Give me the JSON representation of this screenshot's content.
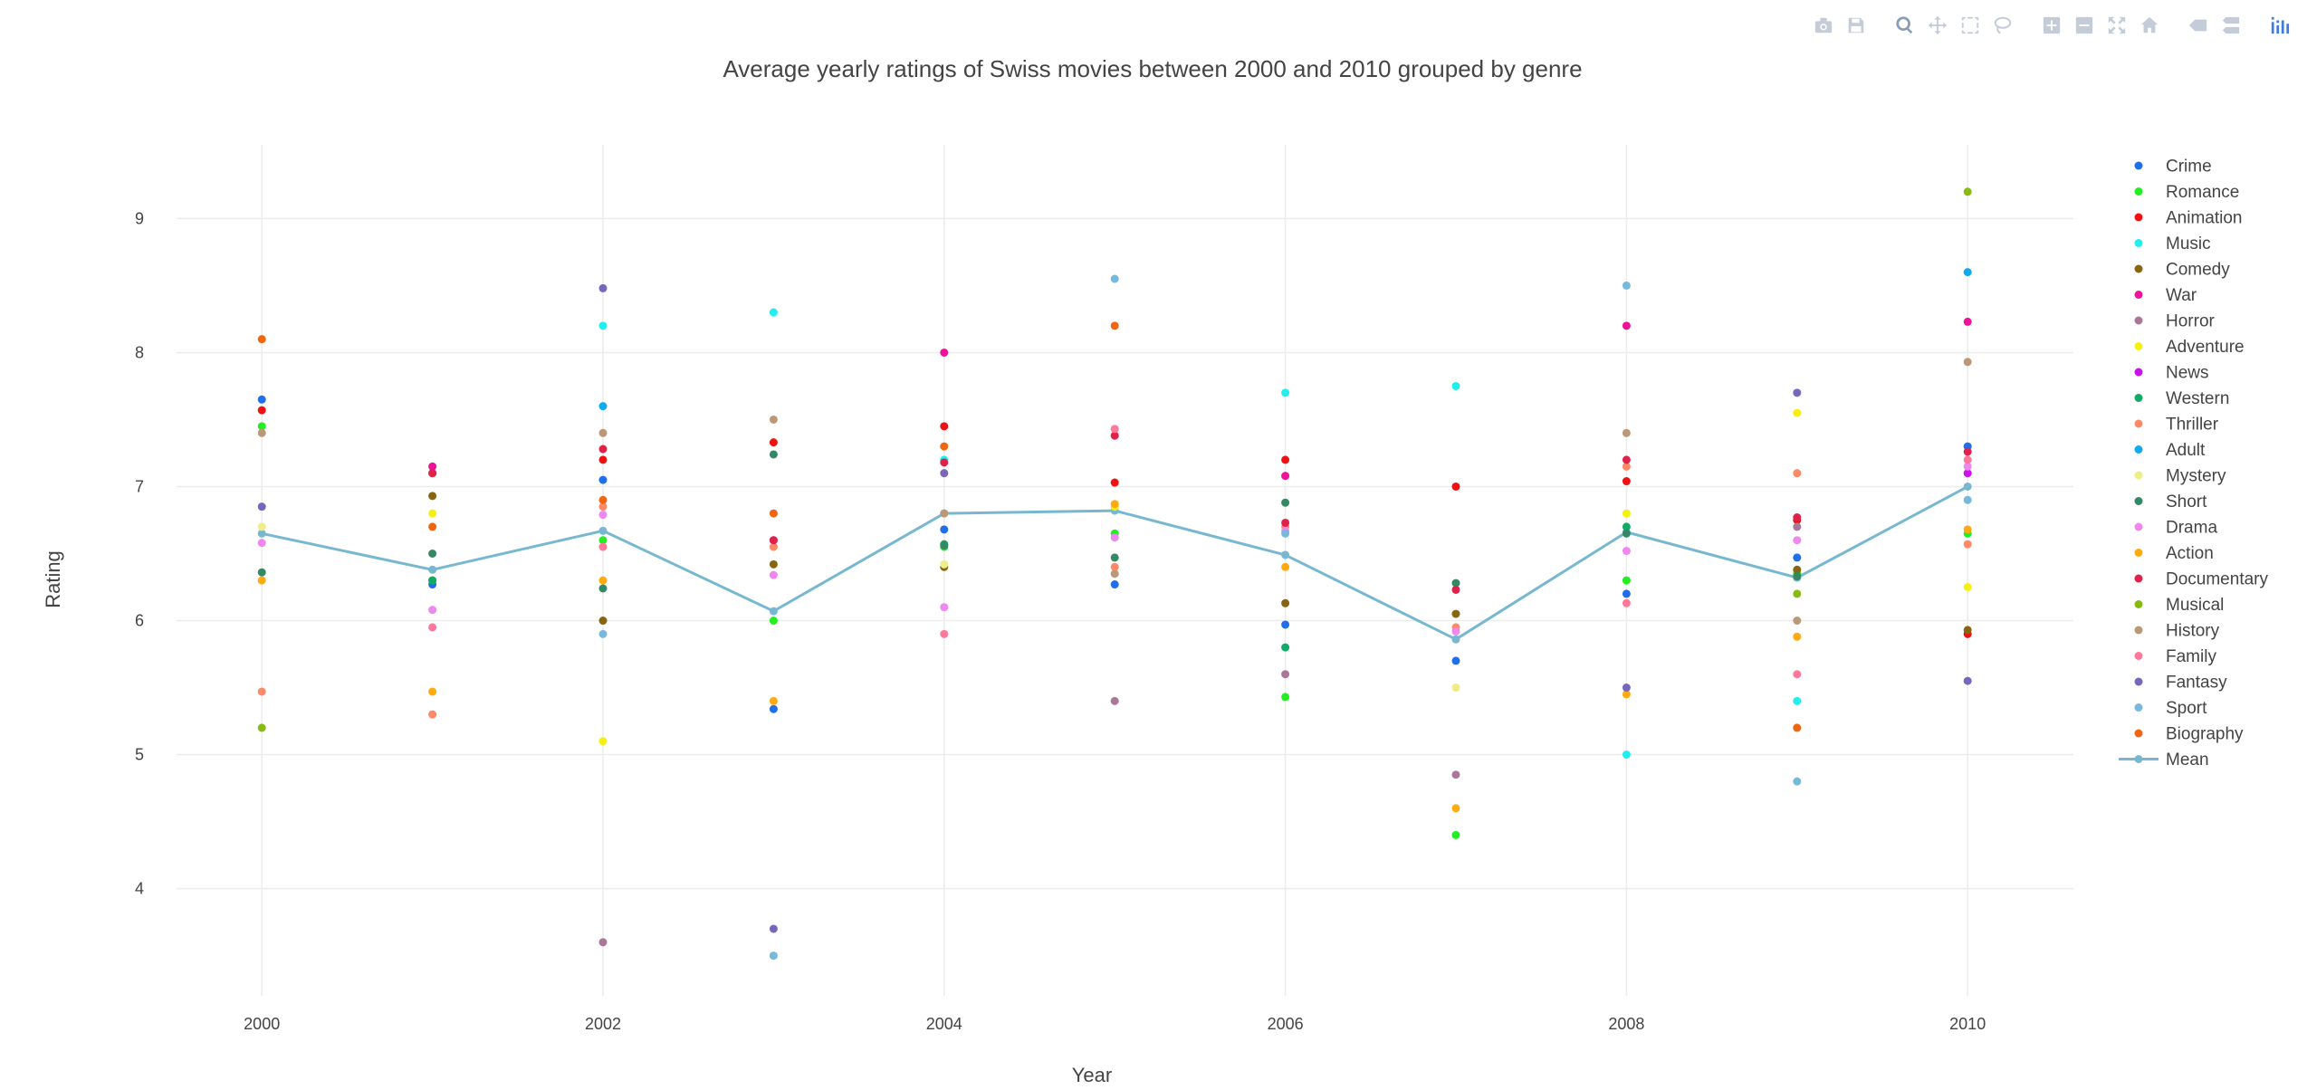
{
  "modebar": {
    "buttons": [
      {
        "name": "camera-icon",
        "group": 0
      },
      {
        "name": "save-icon",
        "group": 0
      },
      {
        "name": "zoom-icon",
        "group": 1,
        "active": true
      },
      {
        "name": "pan-icon",
        "group": 1
      },
      {
        "name": "box-select-icon",
        "group": 1
      },
      {
        "name": "lasso-select-icon",
        "group": 1
      },
      {
        "name": "zoom-in-icon",
        "group": 2
      },
      {
        "name": "zoom-out-icon",
        "group": 2
      },
      {
        "name": "autoscale-icon",
        "group": 2
      },
      {
        "name": "reset-axes-icon",
        "group": 2
      },
      {
        "name": "spike-lines-icon",
        "group": 3
      },
      {
        "name": "compare-hover-icon",
        "group": 3
      },
      {
        "name": "plotly-logo-icon",
        "group": 4
      }
    ]
  },
  "chart_data": {
    "type": "scatter",
    "title": "Average yearly ratings of Swiss movies between 2000 and 2010 grouped by genre",
    "xlabel": "Year",
    "ylabel": "Rating",
    "xlim": [
      1999.5,
      2010.62
    ],
    "ylim": [
      3.2,
      9.55
    ],
    "xticks": [
      2000,
      2002,
      2004,
      2006,
      2008,
      2010
    ],
    "yticks": [
      4,
      5,
      6,
      7,
      8,
      9
    ],
    "grid": true,
    "legend_position": "right",
    "x": [
      2000,
      2001,
      2002,
      2003,
      2004,
      2005,
      2006,
      2007,
      2008,
      2009,
      2010
    ],
    "series": [
      {
        "name": "Crime",
        "color": "#1f6fe8",
        "points": [
          [
            2000,
            7.65
          ],
          [
            2001,
            6.27
          ],
          [
            2002,
            7.05
          ],
          [
            2003,
            5.34
          ],
          [
            2004,
            6.68
          ],
          [
            2005,
            6.27
          ],
          [
            2006,
            5.97
          ],
          [
            2007,
            5.7
          ],
          [
            2008,
            6.2
          ],
          [
            2009,
            6.47
          ],
          [
            2010,
            7.3
          ]
        ]
      },
      {
        "name": "Romance",
        "color": "#22ee22",
        "points": [
          [
            2000,
            7.45
          ],
          [
            2001,
            6.3
          ],
          [
            2002,
            6.6
          ],
          [
            2003,
            6.0
          ],
          [
            2004,
            6.55
          ],
          [
            2005,
            6.65
          ],
          [
            2006,
            5.43
          ],
          [
            2007,
            4.4
          ],
          [
            2008,
            6.3
          ],
          [
            2009,
            6.35
          ],
          [
            2010,
            6.65
          ]
        ]
      },
      {
        "name": "Animation",
        "color": "#ee1111",
        "points": [
          [
            2000,
            7.57
          ],
          [
            2001,
            7.1
          ],
          [
            2002,
            7.2
          ],
          [
            2003,
            7.33
          ],
          [
            2004,
            7.45
          ],
          [
            2005,
            7.03
          ],
          [
            2006,
            7.2
          ],
          [
            2007,
            7.0
          ],
          [
            2008,
            7.04
          ],
          [
            2009,
            6.75
          ],
          [
            2010,
            5.9
          ]
        ]
      },
      {
        "name": "Music",
        "color": "#22eeee",
        "points": [
          [
            2002,
            8.2
          ],
          [
            2003,
            8.3
          ],
          [
            2004,
            7.2
          ],
          [
            2006,
            7.7
          ],
          [
            2007,
            7.75
          ],
          [
            2008,
            5.0
          ],
          [
            2009,
            5.4
          ]
        ]
      },
      {
        "name": "Comedy",
        "color": "#886611",
        "points": [
          [
            2001,
            6.93
          ],
          [
            2002,
            6.0
          ],
          [
            2003,
            6.42
          ],
          [
            2004,
            6.4
          ],
          [
            2006,
            6.13
          ],
          [
            2007,
            6.05
          ],
          [
            2009,
            6.38
          ],
          [
            2010,
            5.93
          ]
        ]
      },
      {
        "name": "War",
        "color": "#ee1199",
        "points": [
          [
            2001,
            7.15
          ],
          [
            2003,
            6.6
          ],
          [
            2004,
            8.0
          ],
          [
            2006,
            7.08
          ],
          [
            2008,
            8.2
          ],
          [
            2010,
            8.23
          ]
        ]
      },
      {
        "name": "Horror",
        "color": "#aa7799",
        "points": [
          [
            2002,
            3.6
          ],
          [
            2005,
            5.4
          ],
          [
            2006,
            5.6
          ],
          [
            2007,
            4.85
          ],
          [
            2009,
            6.7
          ]
        ]
      },
      {
        "name": "Adventure",
        "color": "#f5f011",
        "points": [
          [
            2001,
            6.8
          ],
          [
            2002,
            5.1
          ],
          [
            2005,
            6.85
          ],
          [
            2008,
            6.8
          ],
          [
            2009,
            7.55
          ],
          [
            2010,
            6.25
          ]
        ]
      },
      {
        "name": "News",
        "color": "#cc11ee",
        "points": [
          [
            2010,
            7.1
          ]
        ]
      },
      {
        "name": "Western",
        "color": "#11aa66",
        "points": [
          [
            2001,
            6.3
          ],
          [
            2004,
            6.57
          ],
          [
            2006,
            5.8
          ],
          [
            2008,
            6.7
          ]
        ]
      },
      {
        "name": "Thriller",
        "color": "#ff8866",
        "points": [
          [
            2000,
            5.47
          ],
          [
            2001,
            5.3
          ],
          [
            2002,
            6.85
          ],
          [
            2003,
            6.55
          ],
          [
            2005,
            6.4
          ],
          [
            2006,
            6.7
          ],
          [
            2007,
            5.95
          ],
          [
            2008,
            7.15
          ],
          [
            2009,
            7.1
          ],
          [
            2010,
            6.57
          ]
        ]
      },
      {
        "name": "Adult",
        "color": "#11aaee",
        "points": [
          [
            2002,
            7.6
          ],
          [
            2010,
            8.6
          ]
        ]
      },
      {
        "name": "Mystery",
        "color": "#eeee88",
        "points": [
          [
            2000,
            6.7
          ],
          [
            2004,
            6.42
          ],
          [
            2007,
            5.5
          ]
        ]
      },
      {
        "name": "Short",
        "color": "#338866",
        "points": [
          [
            2000,
            6.36
          ],
          [
            2001,
            6.5
          ],
          [
            2002,
            6.24
          ],
          [
            2003,
            7.24
          ],
          [
            2004,
            6.56
          ],
          [
            2005,
            6.47
          ],
          [
            2006,
            6.88
          ],
          [
            2007,
            6.28
          ],
          [
            2008,
            6.65
          ],
          [
            2009,
            6.33
          ]
        ]
      },
      {
        "name": "Drama",
        "color": "#ee88ee",
        "points": [
          [
            2000,
            6.58
          ],
          [
            2001,
            6.08
          ],
          [
            2002,
            6.79
          ],
          [
            2003,
            6.34
          ],
          [
            2004,
            6.1
          ],
          [
            2005,
            6.62
          ],
          [
            2006,
            6.67
          ],
          [
            2007,
            5.92
          ],
          [
            2008,
            6.52
          ],
          [
            2009,
            6.6
          ],
          [
            2010,
            7.15
          ]
        ]
      },
      {
        "name": "Action",
        "color": "#ffaa11",
        "points": [
          [
            2000,
            6.3
          ],
          [
            2001,
            5.47
          ],
          [
            2002,
            6.3
          ],
          [
            2003,
            5.4
          ],
          [
            2005,
            6.87
          ],
          [
            2006,
            6.4
          ],
          [
            2007,
            4.6
          ],
          [
            2008,
            5.45
          ],
          [
            2009,
            5.88
          ],
          [
            2010,
            6.68
          ]
        ]
      },
      {
        "name": "Documentary",
        "color": "#e0224a",
        "points": [
          [
            2001,
            7.1
          ],
          [
            2002,
            7.28
          ],
          [
            2003,
            6.6
          ],
          [
            2004,
            7.18
          ],
          [
            2005,
            7.38
          ],
          [
            2006,
            6.73
          ],
          [
            2007,
            6.23
          ],
          [
            2008,
            7.2
          ],
          [
            2009,
            6.77
          ],
          [
            2010,
            7.26
          ]
        ]
      },
      {
        "name": "Musical",
        "color": "#88bb11",
        "points": [
          [
            2000,
            5.2
          ],
          [
            2009,
            6.2
          ],
          [
            2010,
            9.2
          ]
        ]
      },
      {
        "name": "History",
        "color": "#bb9977",
        "points": [
          [
            2000,
            7.4
          ],
          [
            2002,
            7.4
          ],
          [
            2003,
            7.5
          ],
          [
            2004,
            6.8
          ],
          [
            2005,
            6.35
          ],
          [
            2008,
            7.4
          ],
          [
            2009,
            6.0
          ],
          [
            2010,
            7.93
          ]
        ]
      },
      {
        "name": "Family",
        "color": "#ff7799",
        "points": [
          [
            2001,
            5.95
          ],
          [
            2002,
            6.55
          ],
          [
            2004,
            5.9
          ],
          [
            2005,
            7.43
          ],
          [
            2008,
            6.13
          ],
          [
            2009,
            5.6
          ],
          [
            2010,
            7.2
          ]
        ]
      },
      {
        "name": "Fantasy",
        "color": "#7766bb",
        "points": [
          [
            2000,
            6.85
          ],
          [
            2002,
            8.48
          ],
          [
            2003,
            3.7
          ],
          [
            2004,
            7.1
          ],
          [
            2008,
            5.5
          ],
          [
            2009,
            7.7
          ],
          [
            2010,
            5.55
          ]
        ]
      },
      {
        "name": "Sport",
        "color": "#77b8dd",
        "points": [
          [
            2002,
            5.9
          ],
          [
            2003,
            3.5
          ],
          [
            2005,
            8.55
          ],
          [
            2006,
            6.65
          ],
          [
            2008,
            8.5
          ],
          [
            2009,
            4.8
          ],
          [
            2010,
            6.9
          ]
        ]
      },
      {
        "name": "Biography",
        "color": "#ee6611",
        "points": [
          [
            2000,
            8.1
          ],
          [
            2001,
            6.7
          ],
          [
            2002,
            6.9
          ],
          [
            2003,
            6.8
          ],
          [
            2004,
            7.3
          ],
          [
            2005,
            8.2
          ],
          [
            2009,
            5.2
          ]
        ]
      },
      {
        "name": "Mean",
        "color": "#77b8d0",
        "mode": "lines+markers",
        "points": [
          [
            2000,
            6.65
          ],
          [
            2001,
            6.38
          ],
          [
            2002,
            6.67
          ],
          [
            2003,
            6.07
          ],
          [
            2004,
            6.8
          ],
          [
            2005,
            6.82
          ],
          [
            2006,
            6.49
          ],
          [
            2007,
            5.86
          ],
          [
            2008,
            6.66
          ],
          [
            2009,
            6.32
          ],
          [
            2010,
            7.0
          ]
        ]
      }
    ]
  }
}
